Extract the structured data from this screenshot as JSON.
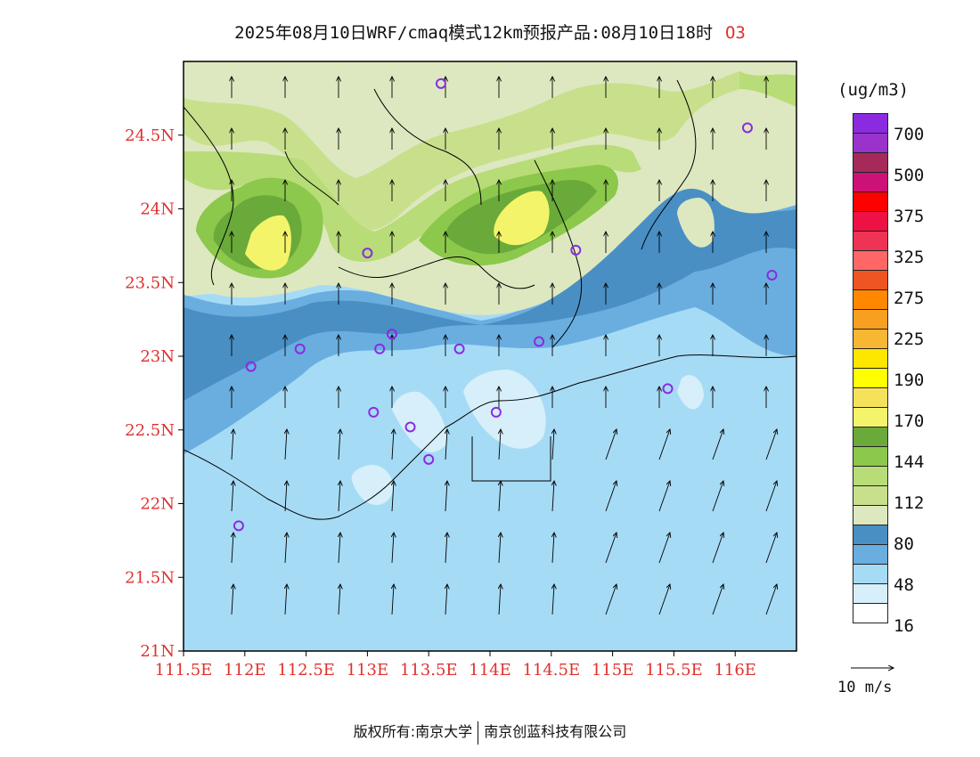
{
  "header": {
    "title": "2025年08月10日WRF/cmaq模式12km预报产品:08月10日18时",
    "variable": "O3"
  },
  "map": {
    "lat_ticks": [
      "24.5N",
      "24N",
      "23.5N",
      "23N",
      "22.5N",
      "22N",
      "21.5N",
      "21N"
    ],
    "lon_ticks": [
      "111.5E",
      "112E",
      "112.5E",
      "113E",
      "113.5E",
      "114E",
      "114.5E",
      "115E",
      "115.5E",
      "116E"
    ],
    "extent": {
      "lon": [
        111.5,
        116.5
      ],
      "lat": [
        21,
        25
      ]
    },
    "stations": [
      {
        "lon": 113.6,
        "lat": 24.85
      },
      {
        "lon": 116.1,
        "lat": 24.55
      },
      {
        "lon": 113.0,
        "lat": 23.7
      },
      {
        "lon": 114.7,
        "lat": 23.72
      },
      {
        "lon": 116.3,
        "lat": 23.55
      },
      {
        "lon": 113.2,
        "lat": 23.15
      },
      {
        "lon": 112.45,
        "lat": 23.05
      },
      {
        "lon": 113.1,
        "lat": 23.05
      },
      {
        "lon": 113.75,
        "lat": 23.05
      },
      {
        "lon": 114.4,
        "lat": 23.1
      },
      {
        "lon": 112.05,
        "lat": 22.93
      },
      {
        "lon": 115.45,
        "lat": 22.78
      },
      {
        "lon": 113.05,
        "lat": 22.62
      },
      {
        "lon": 114.05,
        "lat": 22.62
      },
      {
        "lon": 113.35,
        "lat": 22.52
      },
      {
        "lon": 113.5,
        "lat": 22.3
      },
      {
        "lon": 111.95,
        "lat": 21.85
      }
    ]
  },
  "legend": {
    "unit": "(ug/m3)",
    "labels": [
      "700",
      "500",
      "375",
      "325",
      "275",
      "225",
      "190",
      "170",
      "144",
      "112",
      "80",
      "48",
      "16"
    ],
    "colors": [
      "#8a2be2",
      "#9933cc",
      "#a52a5a",
      "#cc1177",
      "#ff0000",
      "#ee1144",
      "#ee3355",
      "#ff6666",
      "#ee5522",
      "#ff8800",
      "#f7a020",
      "#f7b733",
      "#fee600",
      "#ffff00",
      "#f5e25a",
      "#f4f46a",
      "#6aaa3a",
      "#8cc84b",
      "#b8dc78",
      "#c8e08c",
      "#dde8c0",
      "#4a8fc4",
      "#6aaee0",
      "#a6dbf5",
      "#d6effa",
      "#ffffff"
    ]
  },
  "ref_vector": {
    "label": "10 m/s"
  },
  "footer": {
    "left": "版权所有:南京大学",
    "right": "南京创蓝科技有限公司"
  },
  "colors": {
    "axis_label": "#e0302e",
    "variable_label": "#e0302e",
    "station": "#8a2be2"
  }
}
